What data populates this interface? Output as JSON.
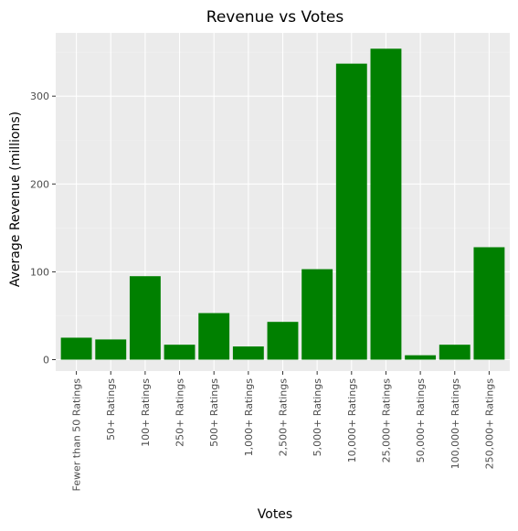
{
  "chart_data": {
    "type": "bar",
    "title": "Revenue vs Votes",
    "xlabel": "Votes",
    "ylabel": "Average Revenue (millions)",
    "categories": [
      "Fewer than 50 Ratings",
      "50+ Ratings",
      "100+ Ratings",
      "250+ Ratings",
      "500+ Ratings",
      "1,000+ Ratings",
      "2,500+ Ratings",
      "5,000+ Ratings",
      "10,000+ Ratings",
      "25,000+ Ratings",
      "50,000+ Ratings",
      "100,000+ Ratings",
      "250,000+ Ratings"
    ],
    "values": [
      25,
      23,
      95,
      17,
      53,
      15,
      43,
      103,
      337,
      354,
      5,
      17,
      128
    ],
    "ylim": [
      -13,
      372
    ],
    "yticks": [
      0,
      100,
      200,
      300
    ],
    "bar_color": "#008000",
    "panel_color": "#ebebeb",
    "grid": true
  }
}
